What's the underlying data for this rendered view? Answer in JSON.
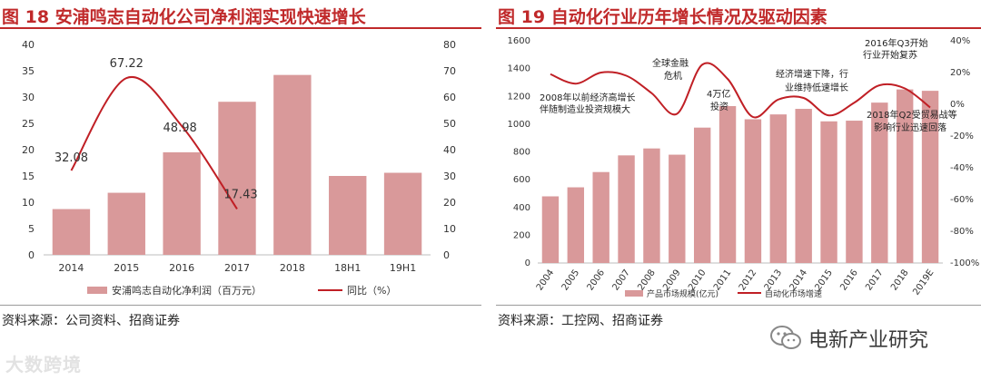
{
  "left": {
    "title_fig": "图 18",
    "title_text": "安浦鸣志自动化公司净利润实现快速增长",
    "source": "资料来源：公司资料、招商证券",
    "legend_bar": "安浦鸣志自动化净利润（百万元）",
    "legend_line": "同比（%）",
    "chart_data": {
      "type": "bar",
      "categories": [
        "2014",
        "2015",
        "2016",
        "2017",
        "2018",
        "18H1",
        "19H1"
      ],
      "series": [
        {
          "name": "安浦鸣志自动化净利润（百万元）",
          "type": "bar",
          "axis": "left",
          "values": [
            8.7,
            11.8,
            19.5,
            29.1,
            34.2,
            15.0,
            15.6
          ]
        },
        {
          "name": "同比（%）",
          "type": "line",
          "axis": "right",
          "values": [
            32.08,
            67.22,
            48.98,
            17.43,
            null,
            null,
            null
          ]
        }
      ],
      "data_labels": [
        "32.08",
        "67.22",
        "48.98",
        "17.43"
      ],
      "ylim_left": [
        0,
        40
      ],
      "yticks_left": [
        "0",
        "5",
        "10",
        "15",
        "20",
        "25",
        "30",
        "35",
        "40"
      ],
      "ylim_right": [
        0,
        80
      ],
      "yticks_right": [
        "0",
        "10",
        "20",
        "30",
        "40",
        "50",
        "60",
        "70",
        "80"
      ]
    }
  },
  "right": {
    "title_fig": "图 19",
    "title_text": "自动化行业历年增长情况及驱动因素",
    "source": "资料来源：工控网、招商证券",
    "legend_bar": "产品市场规模(亿元)",
    "legend_line": "自动化市场增速",
    "annotations": {
      "a1": "2008年以前经济高增长",
      "a1b": "伴随制造业投资规模大",
      "a2": "全球金融",
      "a2b": "危机",
      "a3": "4万亿",
      "a3b": "投资",
      "a4": "经济增速下降，行",
      "a4b": "业维持低速增长",
      "a5": "2016年Q3开始",
      "a5b": "行业开始复苏",
      "a6": "2018年Q2受贸易战等",
      "a6b": "影响行业迅速回落"
    },
    "chart_data": {
      "type": "bar",
      "categories": [
        "2004",
        "2005",
        "2006",
        "2007",
        "2008",
        "2009",
        "2010",
        "2011",
        "2012",
        "2013",
        "2014",
        "2015",
        "2016",
        "2017",
        "2018",
        "2019E"
      ],
      "series": [
        {
          "name": "产品市场规模(亿元)",
          "type": "bar",
          "axis": "left",
          "values": [
            480,
            545,
            655,
            775,
            825,
            780,
            975,
            1130,
            1035,
            1070,
            1110,
            1020,
            1025,
            1155,
            1250,
            1240
          ]
        },
        {
          "name": "自动化市场增速",
          "type": "line",
          "axis": "right",
          "values": [
            19,
            13,
            20,
            18,
            7,
            -6,
            25,
            16,
            -8,
            3,
            4,
            -7,
            1,
            12,
            10,
            -2
          ]
        }
      ],
      "ylim_left": [
        0,
        1600
      ],
      "yticks_left": [
        "0",
        "200",
        "400",
        "600",
        "800",
        "1000",
        "1200",
        "1400",
        "1600"
      ],
      "ylim_right": [
        -100,
        40
      ],
      "yticks_right": [
        "-100%",
        "-80%",
        "-60%",
        "-40%",
        "-20%",
        "0%",
        "20%",
        "40%"
      ]
    }
  },
  "watermark_left": "大数跨境",
  "watermark_right": "电新产业研究"
}
